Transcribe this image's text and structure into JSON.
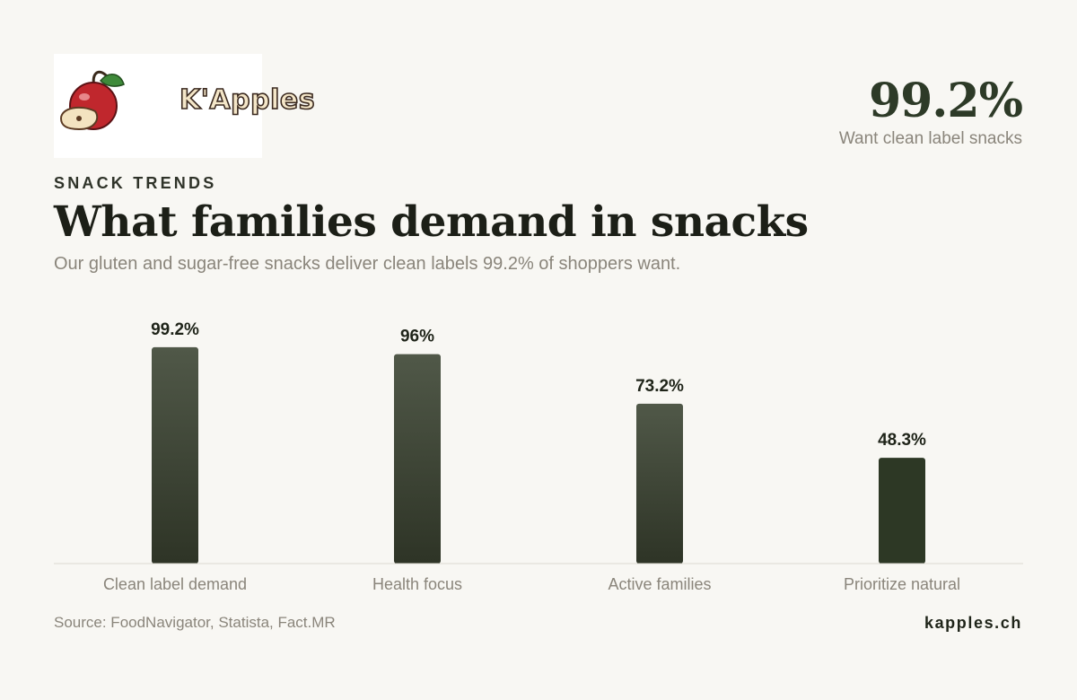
{
  "brand": {
    "logo_text": "K'Apples"
  },
  "kpi": {
    "value": "99.2%",
    "label": "Want clean label snacks"
  },
  "header": {
    "eyebrow": "SNACK TRENDS",
    "title": "What families demand in snacks",
    "subtitle": "Our gluten and sugar-free snacks deliver clean labels 99.2% of shoppers want."
  },
  "chart_data": {
    "type": "bar",
    "categories": [
      "Clean label demand",
      "Health focus",
      "Active families",
      "Prioritize natural"
    ],
    "values": [
      99.2,
      96,
      73.2,
      48.3
    ],
    "value_labels": [
      "99.2%",
      "96%",
      "73.2%",
      "48.3%"
    ],
    "ylim": [
      0,
      100
    ],
    "grid": false,
    "colors": {
      "bar_top": "#505848",
      "bar_bottom": "#2e3426",
      "highlight_bar": "#2d3825"
    }
  },
  "footer": {
    "source": "Source: FoodNavigator, Statista, Fact.MR",
    "site": "kapples.ch"
  }
}
